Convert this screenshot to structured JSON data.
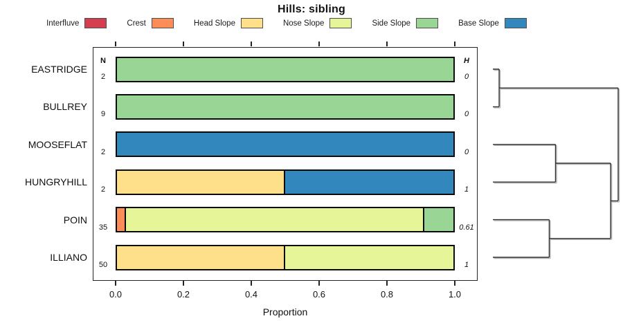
{
  "title": "Hills: sibling",
  "legend": [
    {
      "label": "Interfluve",
      "color": "#D53E4F"
    },
    {
      "label": "Crest",
      "color": "#FC8D59"
    },
    {
      "label": "Head Slope",
      "color": "#FEE08B"
    },
    {
      "label": "Nose Slope",
      "color": "#E6F598"
    },
    {
      "label": "Side Slope",
      "color": "#99D594"
    },
    {
      "label": "Base Slope",
      "color": "#3288BD"
    }
  ],
  "chart_data": {
    "type": "bar",
    "orientation": "horizontal",
    "stacked": true,
    "title": "Hills: sibling",
    "xlabel": "Proportion",
    "xlim": [
      0,
      1
    ],
    "x_ticks": [
      {
        "label": "0.0",
        "v": 0.0
      },
      {
        "label": "0.2",
        "v": 0.2
      },
      {
        "label": "0.4",
        "v": 0.4
      },
      {
        "label": "0.6",
        "v": 0.6
      },
      {
        "label": "0.8",
        "v": 0.8
      },
      {
        "label": "1.0",
        "v": 1.0
      }
    ],
    "columns": {
      "n": "N",
      "h": "H"
    },
    "rows": [
      {
        "name": "EASTRIDGE",
        "n": "2",
        "h": "0",
        "segments": [
          {
            "c": "Side Slope",
            "f": 0,
            "t": 1
          }
        ]
      },
      {
        "name": "BULLREY",
        "n": "9",
        "h": "0",
        "segments": [
          {
            "c": "Side Slope",
            "f": 0,
            "t": 1
          }
        ]
      },
      {
        "name": "MOOSEFLAT",
        "n": "2",
        "h": "0",
        "segments": [
          {
            "c": "Base Slope",
            "f": 0,
            "t": 1
          }
        ]
      },
      {
        "name": "HUNGRYHILL",
        "n": "2",
        "h": "1",
        "segments": [
          {
            "c": "Head Slope",
            "f": 0,
            "t": 0.5
          },
          {
            "c": "Base Slope",
            "f": 0.5,
            "t": 1
          }
        ]
      },
      {
        "name": "POIN",
        "n": "35",
        "h": "0.61",
        "segments": [
          {
            "c": "Crest",
            "f": 0,
            "t": 0.03
          },
          {
            "c": "Nose Slope",
            "f": 0.03,
            "t": 0.91
          },
          {
            "c": "Side Slope",
            "f": 0.91,
            "t": 1
          }
        ]
      },
      {
        "name": "ILLIANO",
        "n": "50",
        "h": "1",
        "segments": [
          {
            "c": "Head Slope",
            "f": 0,
            "t": 0.5
          },
          {
            "c": "Nose Slope",
            "f": 0.5,
            "t": 1
          }
        ]
      }
    ],
    "dendrogram": {
      "h": 1.0,
      "children": [
        {
          "h": 0.05,
          "children": [
            {
              "leaf": "EASTRIDGE"
            },
            {
              "leaf": "BULLREY"
            }
          ]
        },
        {
          "h": 0.94,
          "children": [
            {
              "h": 0.5,
              "children": [
                {
                  "leaf": "MOOSEFLAT"
                },
                {
                  "leaf": "HUNGRYHILL"
                }
              ]
            },
            {
              "h": 0.45,
              "children": [
                {
                  "leaf": "POIN"
                },
                {
                  "leaf": "ILLIANO"
                }
              ]
            }
          ]
        }
      ]
    }
  },
  "colors": {
    "Interfluve": "#D53E4F",
    "Crest": "#FC8D59",
    "Head Slope": "#FEE08B",
    "Nose Slope": "#E6F598",
    "Side Slope": "#99D594",
    "Base Slope": "#3288BD"
  }
}
